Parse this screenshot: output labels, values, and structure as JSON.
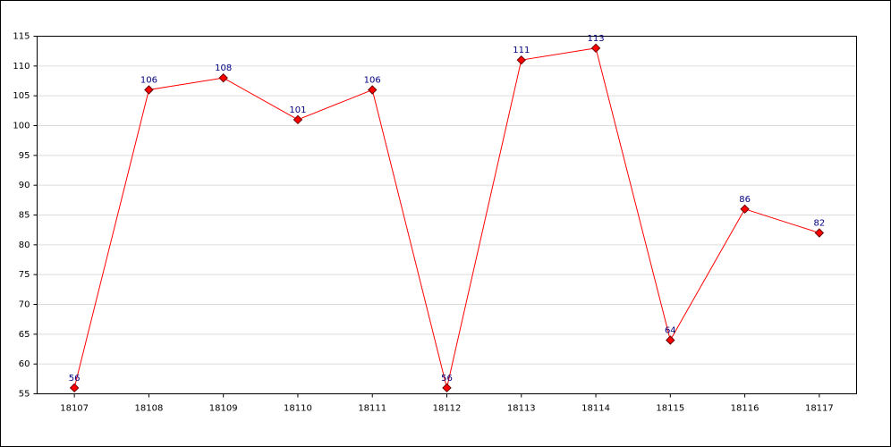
{
  "chart_data": {
    "type": "line",
    "categories": [
      "18107",
      "18108",
      "18109",
      "18110",
      "18111",
      "18112",
      "18113",
      "18114",
      "18115",
      "18116",
      "18117"
    ],
    "values": [
      56,
      106,
      108,
      101,
      106,
      56,
      111,
      113,
      64,
      86,
      82
    ],
    "color": "#ff0000",
    "ylim": [
      55,
      115
    ],
    "yticks": [
      55,
      60,
      65,
      70,
      75,
      80,
      85,
      90,
      95,
      100,
      105,
      110,
      115
    ],
    "grid": true
  }
}
